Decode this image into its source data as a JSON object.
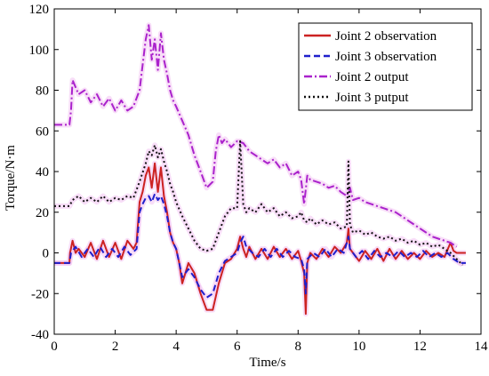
{
  "chart_data": {
    "type": "line",
    "title": "",
    "xlabel": "Time/s",
    "ylabel": "Torque/N·m",
    "xlim": [
      0,
      14
    ],
    "ylim": [
      -40,
      120
    ],
    "xticks": [
      0,
      2,
      4,
      6,
      8,
      10,
      12,
      14
    ],
    "yticks": [
      -40,
      -20,
      0,
      20,
      40,
      60,
      80,
      100,
      120
    ],
    "grid": false,
    "legend_position": "top-right",
    "series": [
      {
        "name": "Joint 2 observation",
        "color": "#cc2222",
        "style": "solid",
        "x": [
          0.0,
          0.5,
          0.52,
          0.6,
          0.7,
          0.8,
          1.0,
          1.2,
          1.4,
          1.6,
          1.8,
          2.0,
          2.2,
          2.4,
          2.6,
          2.7,
          2.8,
          2.9,
          3.0,
          3.1,
          3.2,
          3.3,
          3.4,
          3.5,
          3.6,
          3.7,
          3.8,
          3.9,
          4.0,
          4.1,
          4.2,
          4.4,
          4.6,
          4.8,
          5.0,
          5.2,
          5.4,
          5.6,
          5.8,
          6.0,
          6.1,
          6.15,
          6.2,
          6.3,
          6.4,
          6.6,
          6.8,
          7.0,
          7.2,
          7.4,
          7.6,
          7.8,
          8.0,
          8.1,
          8.2,
          8.25,
          8.3,
          8.4,
          8.6,
          8.8,
          9.0,
          9.2,
          9.4,
          9.6,
          9.65,
          9.7,
          9.8,
          10.0,
          10.2,
          10.4,
          10.6,
          10.8,
          11.0,
          11.2,
          11.4,
          11.6,
          11.8,
          12.0,
          12.2,
          12.4,
          12.6,
          12.8,
          13.0,
          13.1,
          13.2,
          13.5
        ],
        "y": [
          -5,
          -5,
          0,
          6,
          0,
          2,
          -2,
          5,
          -3,
          6,
          -2,
          5,
          -3,
          6,
          2,
          5,
          25,
          30,
          38,
          42,
          32,
          44,
          30,
          42,
          28,
          20,
          10,
          5,
          2,
          -5,
          -15,
          -5,
          -10,
          -20,
          -28,
          -28,
          -15,
          -5,
          -3,
          2,
          8,
          5,
          2,
          -2,
          3,
          -3,
          2,
          -3,
          3,
          -2,
          2,
          -3,
          1,
          -4,
          -10,
          -30,
          -5,
          0,
          -3,
          2,
          -2,
          3,
          0,
          5,
          12,
          2,
          0,
          -4,
          1,
          -3,
          2,
          -4,
          2,
          -3,
          1,
          -3,
          0,
          -3,
          1,
          -2,
          0,
          -2,
          5,
          1,
          0,
          0
        ]
      },
      {
        "name": "Joint 3 observation",
        "color": "#1f1fcc",
        "style": "dashed",
        "x": [
          0.0,
          0.5,
          0.55,
          0.7,
          0.9,
          1.1,
          1.3,
          1.5,
          1.7,
          1.9,
          2.1,
          2.3,
          2.5,
          2.7,
          2.8,
          2.9,
          3.0,
          3.1,
          3.2,
          3.3,
          3.4,
          3.5,
          3.6,
          3.7,
          3.8,
          3.9,
          4.0,
          4.1,
          4.2,
          4.4,
          4.6,
          4.8,
          5.0,
          5.2,
          5.4,
          5.6,
          5.8,
          6.0,
          6.1,
          6.2,
          6.3,
          6.5,
          6.7,
          6.9,
          7.1,
          7.3,
          7.5,
          7.7,
          7.9,
          8.1,
          8.2,
          8.25,
          8.3,
          8.5,
          8.7,
          8.9,
          9.1,
          9.3,
          9.5,
          9.6,
          9.65,
          9.7,
          9.9,
          10.1,
          10.3,
          10.5,
          10.7,
          10.9,
          11.1,
          11.3,
          11.5,
          11.7,
          11.9,
          12.1,
          12.3,
          12.5,
          12.7,
          12.9,
          13.1,
          13.3,
          13.5
        ],
        "y": [
          -5,
          -5,
          0,
          3,
          -2,
          2,
          -2,
          3,
          -2,
          2,
          -2,
          3,
          -1,
          2,
          20,
          24,
          27,
          28,
          25,
          29,
          26,
          28,
          24,
          18,
          10,
          5,
          2,
          -5,
          -12,
          -8,
          -12,
          -18,
          -22,
          -20,
          -10,
          -4,
          -2,
          0,
          5,
          8,
          3,
          0,
          -2,
          2,
          -2,
          2,
          -2,
          1,
          -2,
          -3,
          -8,
          -20,
          -3,
          0,
          -2,
          2,
          -2,
          2,
          0,
          5,
          8,
          2,
          -2,
          1,
          -3,
          1,
          -2,
          0,
          -2,
          1,
          -2,
          0,
          -2,
          1,
          -2,
          0,
          -2,
          0,
          -3,
          -5,
          -5
        ]
      },
      {
        "name": "Joint 2 output",
        "color": "#aa22cc",
        "style": "dashdot",
        "x": [
          0.0,
          0.5,
          0.55,
          0.6,
          0.8,
          1.0,
          1.2,
          1.4,
          1.6,
          1.8,
          2.0,
          2.2,
          2.4,
          2.6,
          2.8,
          3.0,
          3.1,
          3.2,
          3.3,
          3.4,
          3.5,
          3.6,
          3.7,
          3.8,
          3.9,
          4.0,
          4.2,
          4.4,
          4.6,
          4.8,
          5.0,
          5.2,
          5.3,
          5.4,
          5.5,
          5.6,
          5.8,
          6.0,
          6.2,
          6.4,
          6.6,
          6.8,
          7.0,
          7.2,
          7.4,
          7.6,
          7.8,
          8.0,
          8.1,
          8.2,
          8.3,
          8.4,
          8.6,
          8.8,
          9.0,
          9.2,
          9.4,
          9.6,
          9.7,
          9.8,
          10.0,
          10.2,
          10.4,
          10.6,
          10.8,
          11.0,
          11.2,
          11.4,
          11.6,
          11.8,
          12.0,
          12.2,
          12.4,
          12.6,
          12.8,
          13.0,
          13.2
        ],
        "y": [
          63,
          63,
          70,
          85,
          78,
          80,
          74,
          78,
          72,
          76,
          70,
          75,
          70,
          72,
          80,
          105,
          112,
          95,
          105,
          90,
          108,
          95,
          88,
          80,
          75,
          72,
          65,
          58,
          48,
          40,
          32,
          35,
          50,
          58,
          54,
          56,
          52,
          55,
          54,
          50,
          48,
          46,
          44,
          46,
          42,
          44,
          38,
          40,
          36,
          24,
          38,
          36,
          35,
          34,
          32,
          33,
          30,
          28,
          32,
          26,
          27,
          25,
          24,
          23,
          22,
          21,
          20,
          18,
          16,
          14,
          12,
          10,
          8,
          7,
          6,
          5,
          3
        ]
      },
      {
        "name": "Joint 3 putput",
        "color": "#111111",
        "style": "dotted",
        "x": [
          0.0,
          0.5,
          0.6,
          0.8,
          1.0,
          1.2,
          1.4,
          1.6,
          1.8,
          2.0,
          2.2,
          2.4,
          2.6,
          2.8,
          3.0,
          3.1,
          3.2,
          3.3,
          3.4,
          3.5,
          3.6,
          3.7,
          3.8,
          3.9,
          4.0,
          4.2,
          4.4,
          4.6,
          4.8,
          5.0,
          5.2,
          5.4,
          5.6,
          5.8,
          6.0,
          6.1,
          6.2,
          6.3,
          6.4,
          6.6,
          6.8,
          7.0,
          7.2,
          7.4,
          7.6,
          7.8,
          8.0,
          8.1,
          8.2,
          8.3,
          8.4,
          8.6,
          8.8,
          9.0,
          9.2,
          9.4,
          9.6,
          9.65,
          9.7,
          9.8,
          10.0,
          10.2,
          10.4,
          10.6,
          10.8,
          11.0,
          11.2,
          11.4,
          11.6,
          11.8,
          12.0,
          12.2,
          12.4,
          12.6,
          12.8,
          13.0,
          13.2,
          13.4
        ],
        "y": [
          23,
          23,
          26,
          28,
          25,
          27,
          25,
          28,
          25,
          27,
          26,
          28,
          27,
          35,
          44,
          50,
          48,
          53,
          47,
          51,
          45,
          40,
          34,
          30,
          25,
          18,
          12,
          6,
          2,
          1,
          2,
          10,
          18,
          22,
          22,
          55,
          24,
          20,
          22,
          20,
          24,
          20,
          22,
          18,
          20,
          17,
          18,
          20,
          16,
          15,
          17,
          14,
          16,
          14,
          15,
          12,
          13,
          45,
          14,
          10,
          11,
          9,
          10,
          8,
          7,
          8,
          6,
          7,
          5,
          6,
          4,
          5,
          3,
          4,
          2,
          0,
          -3,
          -6
        ]
      }
    ]
  }
}
